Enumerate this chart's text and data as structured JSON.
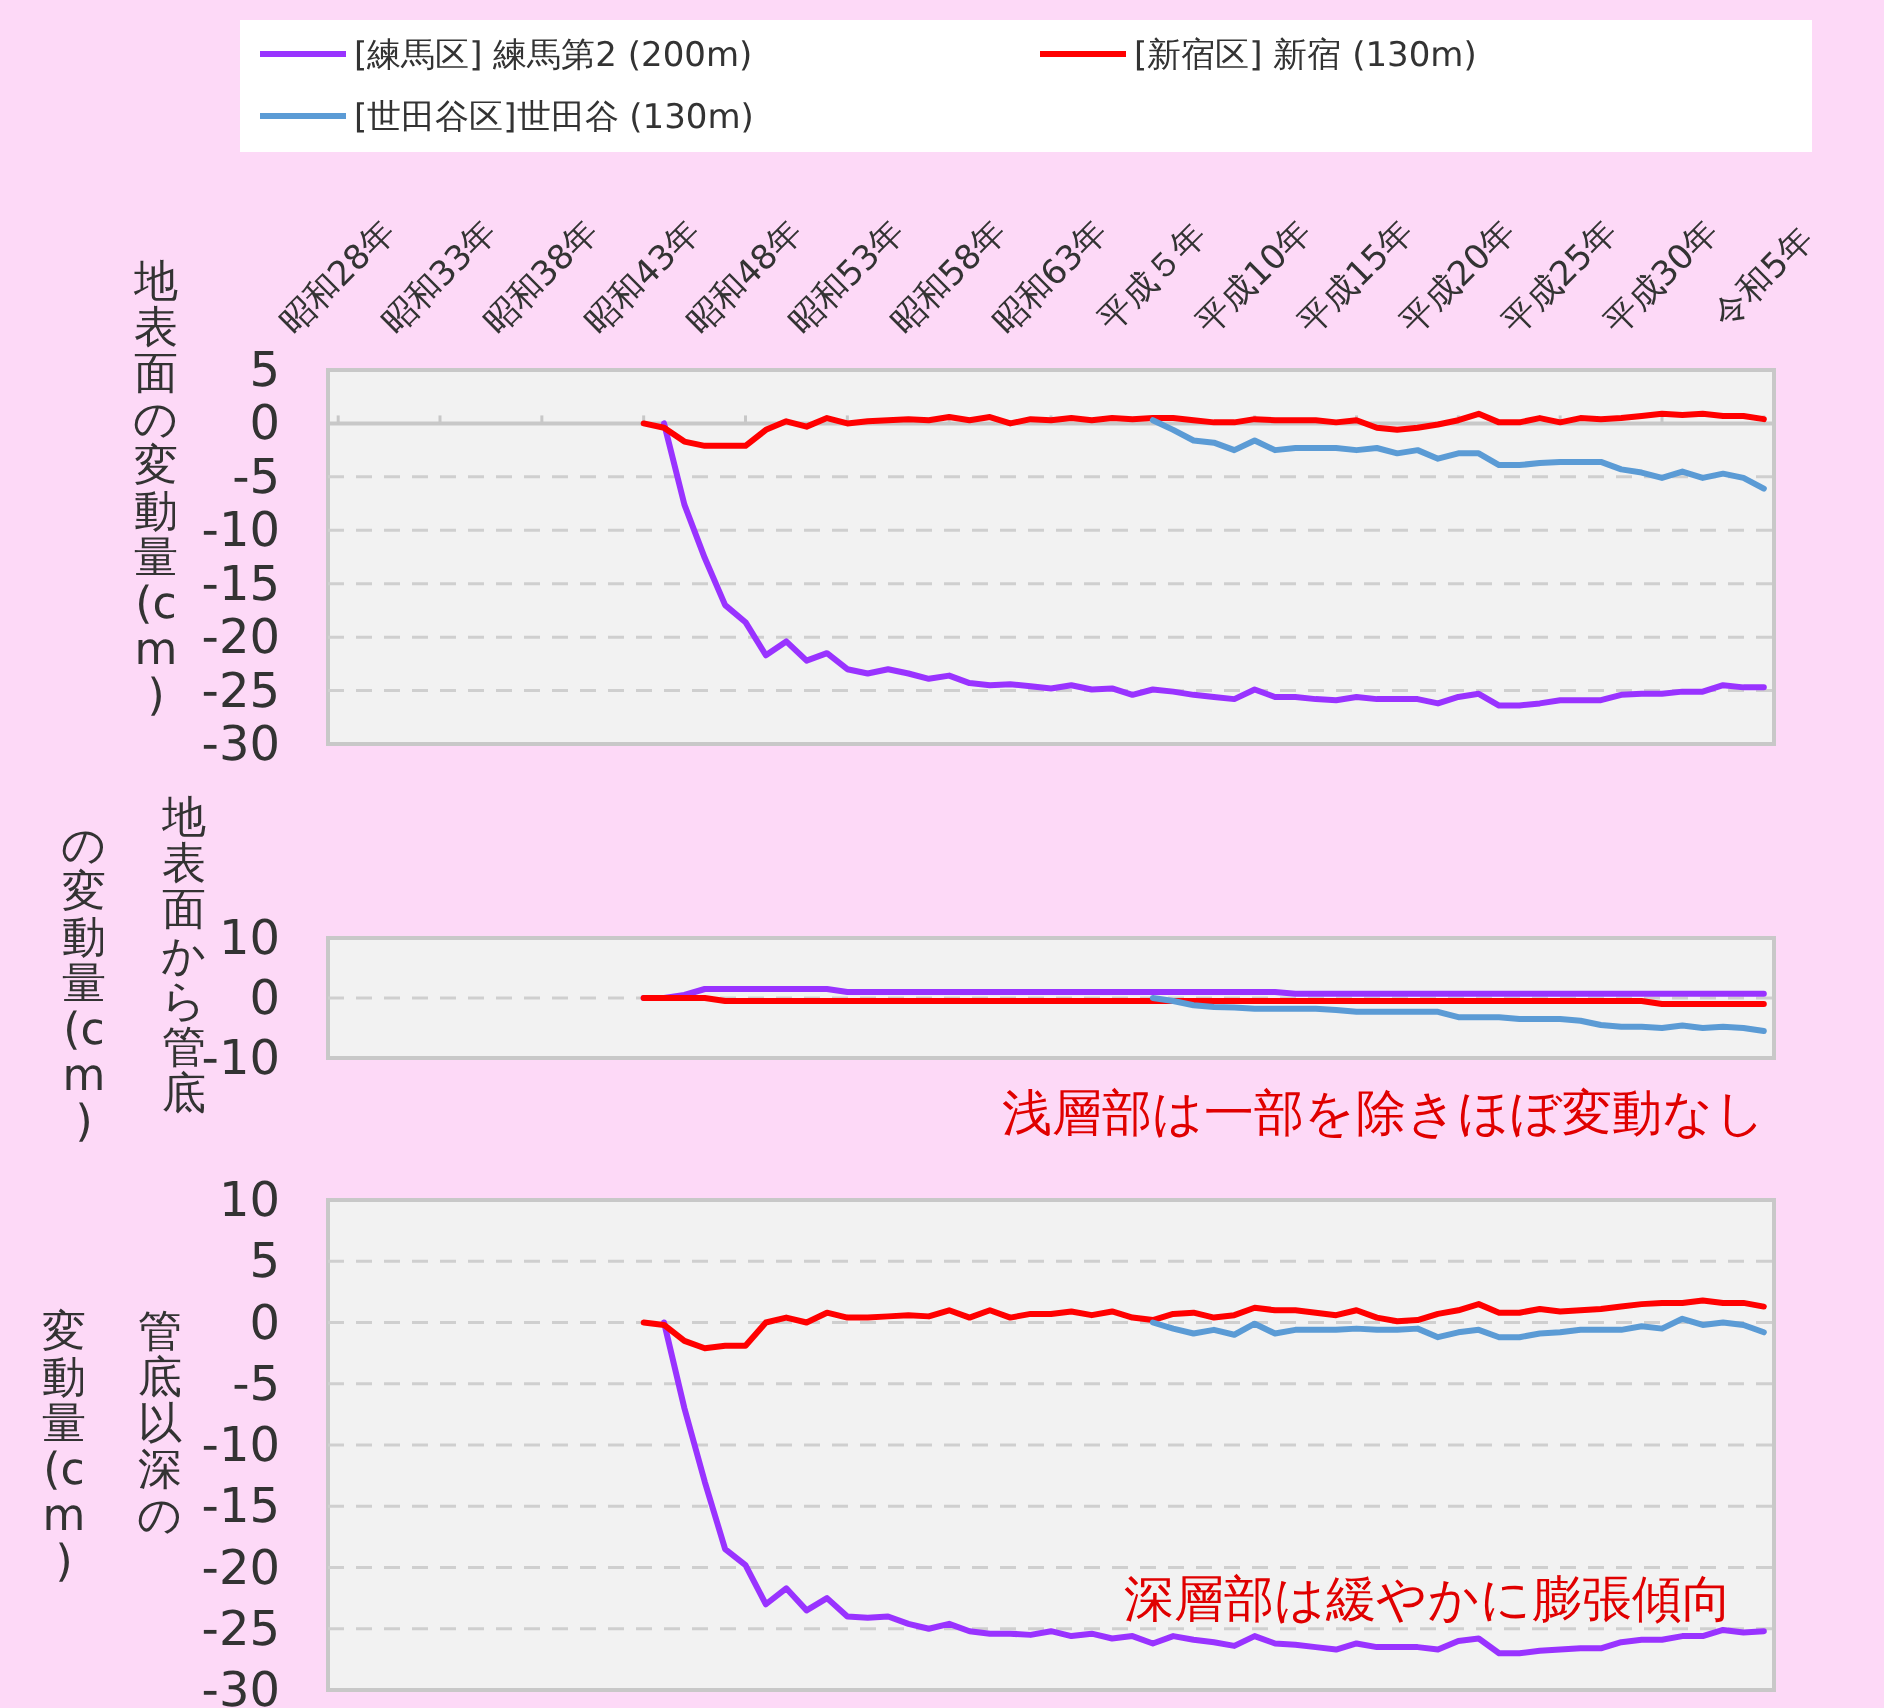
{
  "chart_data": [
    {
      "type": "line",
      "ylabel": "地表面の変動量 (cm)",
      "legend": "top",
      "categories": [
        "昭和28年",
        null,
        null,
        null,
        null,
        "昭和33年",
        null,
        null,
        null,
        null,
        "昭和38年",
        null,
        null,
        null,
        null,
        "昭和43年",
        null,
        null,
        null,
        null,
        "昭和48年",
        null,
        null,
        null,
        null,
        "昭和53年",
        null,
        null,
        null,
        null,
        "昭和58年",
        null,
        null,
        null,
        null,
        "昭和63年",
        null,
        null,
        null,
        null,
        "平成５年",
        null,
        null,
        null,
        null,
        "平成10年",
        null,
        null,
        null,
        null,
        "平成15年",
        null,
        null,
        null,
        null,
        "平成20年",
        null,
        null,
        null,
        null,
        "平成25年",
        null,
        null,
        null,
        null,
        "平成30年",
        null,
        null,
        null,
        null,
        "令和5年"
      ],
      "ylim": [
        -30,
        5
      ],
      "yticks": [
        5,
        0,
        -5,
        -10,
        -15,
        -20,
        -25,
        -30
      ],
      "grid": "y",
      "ref_lines": [
        {
          "axis": "y",
          "value": 0,
          "color": "#c8c8c8",
          "line_style": "solid"
        }
      ],
      "series": [
        {
          "name": "[練馬区] 練馬第2 (200m)",
          "color": "#9933ff",
          "values": [
            null,
            null,
            null,
            null,
            null,
            null,
            null,
            null,
            null,
            null,
            null,
            null,
            null,
            null,
            null,
            null,
            0,
            -7.6,
            -12.6,
            -17,
            -18.6,
            -21.7,
            -20.4,
            -22.2,
            -21.5,
            -23,
            -23.4,
            -23,
            -23.4,
            -23.9,
            -23.6,
            -24.3,
            -24.5,
            -24.4,
            -24.6,
            -24.8,
            -24.5,
            -24.9,
            -24.8,
            -25.4,
            -24.9,
            -25.1,
            -25.4,
            -25.6,
            -25.8,
            -24.9,
            -25.6,
            -25.6,
            -25.8,
            -25.9,
            -25.6,
            -25.8,
            -25.8,
            -25.8,
            -26.2,
            -25.6,
            -25.3,
            -26.4,
            -26.4,
            -26.2,
            -25.9,
            -25.9,
            -25.9,
            -25.4,
            -25.3,
            -25.3,
            -25.1,
            -25.1,
            -24.5,
            -24.7,
            -24.7
          ]
        },
        {
          "name": "[新宿区] 新宿 (130m)",
          "color": "#ff0000",
          "values": [
            null,
            null,
            null,
            null,
            null,
            null,
            null,
            null,
            null,
            null,
            null,
            null,
            null,
            null,
            null,
            0,
            -0.4,
            -1.7,
            -2.1,
            -2.1,
            -2.1,
            -0.6,
            0.2,
            -0.3,
            0.5,
            0,
            0.2,
            0.3,
            0.4,
            0.3,
            0.6,
            0.3,
            0.6,
            0,
            0.4,
            0.3,
            0.5,
            0.3,
            0.5,
            0.4,
            0.5,
            0.5,
            0.3,
            0.1,
            0.1,
            0.4,
            0.3,
            0.3,
            0.3,
            0.1,
            0.3,
            -0.4,
            -0.6,
            -0.4,
            -0.1,
            0.3,
            0.9,
            0.1,
            0.1,
            0.5,
            0.1,
            0.5,
            0.4,
            0.5,
            0.7,
            0.9,
            0.8,
            0.9,
            0.7,
            0.7,
            0.4
          ]
        },
        {
          "name": "[世田谷区]世田谷 (130m)",
          "color": "#5b9bd5",
          "values": [
            null,
            null,
            null,
            null,
            null,
            null,
            null,
            null,
            null,
            null,
            null,
            null,
            null,
            null,
            null,
            null,
            null,
            null,
            null,
            null,
            null,
            null,
            null,
            null,
            null,
            null,
            null,
            null,
            null,
            null,
            null,
            null,
            null,
            null,
            null,
            null,
            null,
            null,
            null,
            null,
            0.3,
            -0.6,
            -1.6,
            -1.8,
            -2.5,
            -1.6,
            -2.5,
            -2.3,
            -2.3,
            -2.3,
            -2.5,
            -2.3,
            -2.8,
            -2.5,
            -3.3,
            -2.8,
            -2.8,
            -3.9,
            -3.9,
            -3.7,
            -3.6,
            -3.6,
            -3.6,
            -4.3,
            -4.6,
            -5.1,
            -4.5,
            -5.1,
            -4.7,
            -5.1,
            -6.1
          ]
        }
      ]
    },
    {
      "type": "line",
      "ylabel": "地表面から管底の変動量 (cm)",
      "tick_labels": "y",
      "categories": [
        null,
        null,
        null,
        null,
        null,
        null,
        null,
        null,
        null,
        null,
        null,
        null,
        null,
        null,
        null,
        null,
        null,
        null,
        null,
        null,
        null,
        null,
        null,
        null,
        null,
        null,
        null,
        null,
        null,
        null,
        null,
        null,
        null,
        null,
        null,
        null,
        null,
        null,
        null,
        null,
        null,
        null,
        null,
        null,
        null,
        null,
        null,
        null,
        null,
        null,
        null,
        null,
        null,
        null,
        null,
        null,
        null,
        null,
        null,
        null,
        null,
        null,
        null,
        null,
        null,
        null,
        null,
        null,
        null,
        null,
        null
      ],
      "ylim": [
        -10,
        10
      ],
      "yticks": [
        10,
        0,
        -10
      ],
      "grid": "y",
      "annotations": [
        "浅層部は一部を除きほぼ変動なし"
      ],
      "series": [
        {
          "color": "#9933ff",
          "values": [
            null,
            null,
            null,
            null,
            null,
            null,
            null,
            null,
            null,
            null,
            null,
            null,
            null,
            null,
            null,
            0,
            0,
            0.5,
            1.5,
            1.5,
            1.5,
            1.5,
            1.5,
            1.5,
            1.5,
            1.0,
            1.0,
            1.0,
            1.0,
            1.0,
            1.0,
            1.0,
            1.0,
            1.0,
            1.0,
            1.0,
            1.0,
            1.0,
            1.0,
            1.0,
            1.0,
            1.0,
            1.0,
            1.0,
            1.0,
            1.0,
            1.0,
            0.7,
            0.7,
            0.7,
            0.7,
            0.7,
            0.7,
            0.7,
            0.7,
            0.7,
            0.7,
            0.7,
            0.7,
            0.7,
            0.7,
            0.7,
            0.7,
            0.7,
            0.7,
            0.7,
            0.7,
            0.7,
            0.7,
            0.7,
            0.7
          ]
        },
        {
          "color": "#ff0000",
          "values": [
            null,
            null,
            null,
            null,
            null,
            null,
            null,
            null,
            null,
            null,
            null,
            null,
            null,
            null,
            null,
            0,
            0,
            0,
            0,
            -0.5,
            -0.5,
            -0.5,
            -0.5,
            -0.5,
            -0.5,
            -0.5,
            -0.5,
            -0.5,
            -0.5,
            -0.5,
            -0.5,
            -0.5,
            -0.5,
            -0.5,
            -0.5,
            -0.5,
            -0.5,
            -0.5,
            -0.5,
            -0.5,
            -0.5,
            -0.5,
            -0.5,
            -0.5,
            -0.5,
            -0.5,
            -0.5,
            -0.5,
            -0.5,
            -0.5,
            -0.5,
            -0.5,
            -0.5,
            -0.5,
            -0.5,
            -0.5,
            -0.5,
            -0.5,
            -0.5,
            -0.5,
            -0.5,
            -0.5,
            -0.5,
            -0.5,
            -0.5,
            -1.0,
            -1.0,
            -1.0,
            -1.0,
            -1.0,
            -1.0
          ]
        },
        {
          "color": "#5b9bd5",
          "values": [
            null,
            null,
            null,
            null,
            null,
            null,
            null,
            null,
            null,
            null,
            null,
            null,
            null,
            null,
            null,
            null,
            null,
            null,
            null,
            null,
            null,
            null,
            null,
            null,
            null,
            null,
            null,
            null,
            null,
            null,
            null,
            null,
            null,
            null,
            null,
            null,
            null,
            null,
            null,
            null,
            0,
            -0.5,
            -1.2,
            -1.5,
            -1.6,
            -1.8,
            -1.8,
            -1.8,
            -1.8,
            -2.0,
            -2.3,
            -2.3,
            -2.3,
            -2.3,
            -2.3,
            -3.2,
            -3.2,
            -3.2,
            -3.5,
            -3.5,
            -3.5,
            -3.8,
            -4.5,
            -4.8,
            -4.8,
            -5.0,
            -4.6,
            -5.0,
            -4.8,
            -5.0,
            -5.5
          ]
        }
      ]
    },
    {
      "type": "line",
      "ylabel": "管底以深の変動量 (cm)",
      "tick_labels": "y",
      "categories": [
        null,
        null,
        null,
        null,
        null,
        null,
        null,
        null,
        null,
        null,
        null,
        null,
        null,
        null,
        null,
        null,
        null,
        null,
        null,
        null,
        null,
        null,
        null,
        null,
        null,
        null,
        null,
        null,
        null,
        null,
        null,
        null,
        null,
        null,
        null,
        null,
        null,
        null,
        null,
        null,
        null,
        null,
        null,
        null,
        null,
        null,
        null,
        null,
        null,
        null,
        null,
        null,
        null,
        null,
        null,
        null,
        null,
        null,
        null,
        null,
        null,
        null,
        null,
        null,
        null,
        null,
        null,
        null,
        null,
        null,
        null
      ],
      "ylim": [
        -30,
        10
      ],
      "yticks": [
        10,
        5,
        0,
        -5,
        -10,
        -15,
        -20,
        -25,
        -30
      ],
      "grid": "y",
      "annotations": [
        "深層部は緩やかに膨張傾向"
      ],
      "series": [
        {
          "color": "#9933ff",
          "values": [
            null,
            null,
            null,
            null,
            null,
            null,
            null,
            null,
            null,
            null,
            null,
            null,
            null,
            null,
            null,
            null,
            0,
            -7,
            -13,
            -18.5,
            -19.8,
            -23,
            -21.7,
            -23.5,
            -22.5,
            -24,
            -24.1,
            -24,
            -24.6,
            -25,
            -24.6,
            -25.2,
            -25.4,
            -25.4,
            -25.5,
            -25.2,
            -25.6,
            -25.4,
            -25.8,
            -25.6,
            -26.2,
            -25.6,
            -25.9,
            -26.1,
            -26.4,
            -25.6,
            -26.2,
            -26.3,
            -26.5,
            -26.7,
            -26.2,
            -26.5,
            -26.5,
            -26.5,
            -26.7,
            -26,
            -25.8,
            -27,
            -27,
            -26.8,
            -26.7,
            -26.6,
            -26.6,
            -26.1,
            -25.9,
            -25.9,
            -25.6,
            -25.6,
            -25.1,
            -25.3,
            -25.2
          ]
        },
        {
          "color": "#ff0000",
          "values": [
            null,
            null,
            null,
            null,
            null,
            null,
            null,
            null,
            null,
            null,
            null,
            null,
            null,
            null,
            null,
            0,
            -0.2,
            -1.5,
            -2.1,
            -1.9,
            -1.9,
            0,
            0.4,
            0,
            0.8,
            0.4,
            0.4,
            0.5,
            0.6,
            0.5,
            1.0,
            0.4,
            1.0,
            0.4,
            0.7,
            0.7,
            0.9,
            0.6,
            0.9,
            0.4,
            0.2,
            0.7,
            0.8,
            0.4,
            0.6,
            1.2,
            1.0,
            1.0,
            0.8,
            0.6,
            1.0,
            0.4,
            0.1,
            0.2,
            0.7,
            1.0,
            1.5,
            0.8,
            0.8,
            1.1,
            0.9,
            1.0,
            1.1,
            1.3,
            1.5,
            1.6,
            1.6,
            1.8,
            1.6,
            1.6,
            1.3
          ]
        },
        {
          "color": "#5b9bd5",
          "values": [
            null,
            null,
            null,
            null,
            null,
            null,
            null,
            null,
            null,
            null,
            null,
            null,
            null,
            null,
            null,
            null,
            null,
            null,
            null,
            null,
            null,
            null,
            null,
            null,
            null,
            null,
            null,
            null,
            null,
            null,
            null,
            null,
            null,
            null,
            null,
            null,
            null,
            null,
            null,
            null,
            0,
            -0.5,
            -0.9,
            -0.6,
            -1.0,
            -0.1,
            -0.9,
            -0.6,
            -0.6,
            -0.6,
            -0.5,
            -0.6,
            -0.6,
            -0.5,
            -1.2,
            -0.8,
            -0.6,
            -1.2,
            -1.2,
            -0.9,
            -0.8,
            -0.6,
            -0.6,
            -0.6,
            -0.3,
            -0.5,
            0.3,
            -0.2,
            0,
            -0.2,
            -0.8
          ]
        }
      ]
    }
  ]
}
